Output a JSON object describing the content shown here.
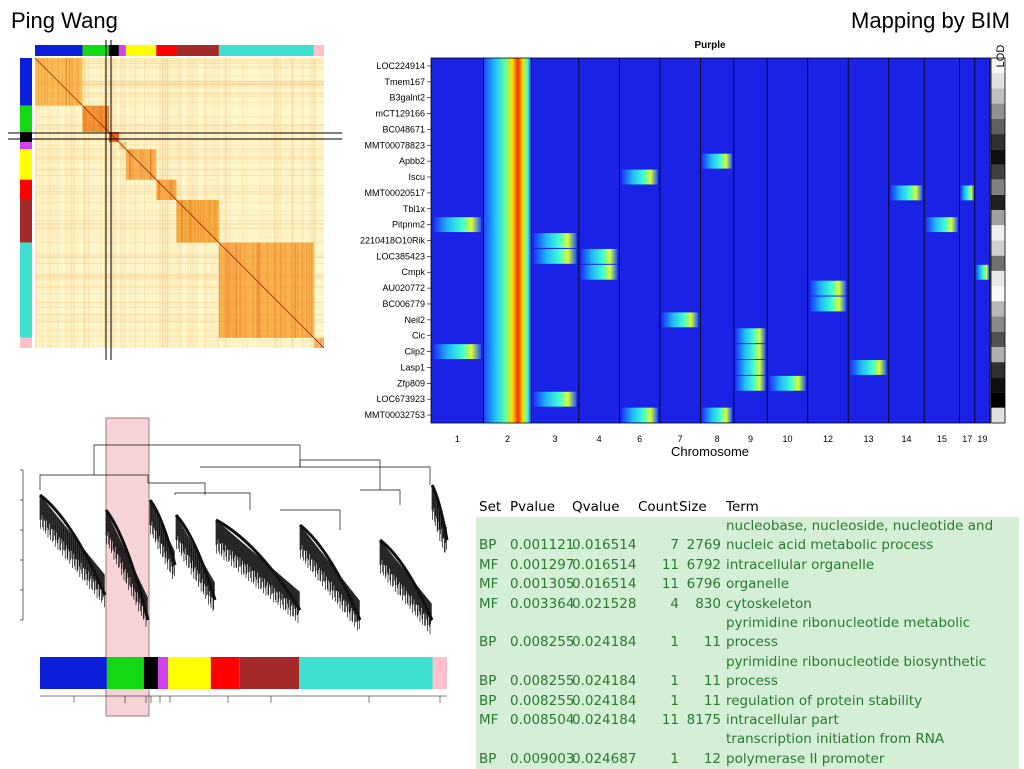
{
  "header": {
    "author": "Ping Wang",
    "method": "Mapping by BIM"
  },
  "modules": [
    {
      "color": "#0b1fdb",
      "size": 47
    },
    {
      "color": "#15d815",
      "size": 26
    },
    {
      "color": "#000000",
      "size": 10
    },
    {
      "color": "#d63ff0",
      "size": 7
    },
    {
      "color": "#ffff00",
      "size": 30
    },
    {
      "color": "#ff0000",
      "size": 20
    },
    {
      "color": "#a52a2a",
      "size": 42
    },
    {
      "color": "#40e0d0",
      "size": 94
    },
    {
      "color": "#ffc0cb",
      "size": 10
    }
  ],
  "lod_heatmap": {
    "title": "Purple",
    "xlabel": "Chromosome",
    "scale_label": "LOD",
    "chromosomes": [
      "1",
      "2",
      "3",
      "4",
      "6",
      "7",
      "8",
      "9",
      "10",
      "12",
      "13",
      "14",
      "15",
      "17",
      "19"
    ],
    "genes": [
      "LOC224914",
      "Tmem167",
      "B3galnt2",
      "mCT129166",
      "BC048671",
      "MMT00078823",
      "Apbb2",
      "Iscu",
      "MMT00020517",
      "Tbl1x",
      "Pitpnm2",
      "2210418O10Rik",
      "LOC385423",
      "Cmpk",
      "AU020772",
      "BC006779",
      "Neil2",
      "Cic",
      "Clip2",
      "Lasp1",
      "Zfp809",
      "LOC673923",
      "MMT00032753"
    ],
    "hotspots": [
      {
        "gene": 6,
        "chr": "8"
      },
      {
        "gene": 7,
        "chr": "6"
      },
      {
        "gene": 8,
        "chr": "14"
      },
      {
        "gene": 8,
        "chr": "17"
      },
      {
        "gene": 10,
        "chr": "1"
      },
      {
        "gene": 10,
        "chr": "15"
      },
      {
        "gene": 11,
        "chr": "3"
      },
      {
        "gene": 12,
        "chr": "3"
      },
      {
        "gene": 12,
        "chr": "4"
      },
      {
        "gene": 13,
        "chr": "4"
      },
      {
        "gene": 13,
        "chr": "19"
      },
      {
        "gene": 14,
        "chr": "12"
      },
      {
        "gene": 15,
        "chr": "12"
      },
      {
        "gene": 16,
        "chr": "7"
      },
      {
        "gene": 17,
        "chr": "9"
      },
      {
        "gene": 18,
        "chr": "1"
      },
      {
        "gene": 18,
        "chr": "9"
      },
      {
        "gene": 19,
        "chr": "9"
      },
      {
        "gene": 19,
        "chr": "13"
      },
      {
        "gene": 20,
        "chr": "9"
      },
      {
        "gene": 20,
        "chr": "10"
      },
      {
        "gene": 21,
        "chr": "3"
      },
      {
        "gene": 22,
        "chr": "6"
      },
      {
        "gene": 22,
        "chr": "8"
      }
    ]
  },
  "enrichment": {
    "headers": {
      "set": "Set",
      "pvalue": "Pvalue",
      "qvalue": "Qvalue",
      "count": "Count",
      "size": "Size",
      "term": "Term"
    },
    "rows": [
      {
        "set": "BP",
        "pvalue": "0.001121",
        "qvalue": "0.016514",
        "count": "7",
        "size": "2769",
        "term": "nucleobase, nucleoside, nucleotide and nucleic acid metabolic process"
      },
      {
        "set": "MF",
        "pvalue": "0.001297",
        "qvalue": "0.016514",
        "count": "11",
        "size": "6792",
        "term": "intracellular organelle"
      },
      {
        "set": "MF",
        "pvalue": "0.001305",
        "qvalue": "0.016514",
        "count": "11",
        "size": "6796",
        "term": "organelle"
      },
      {
        "set": "MF",
        "pvalue": "0.003364",
        "qvalue": "0.021528",
        "count": "4",
        "size": "830",
        "term": "cytoskeleton"
      },
      {
        "set": "BP",
        "pvalue": "0.008255",
        "qvalue": "0.024184",
        "count": "1",
        "size": "11",
        "term": "pyrimidine ribonucleotide metabolic process"
      },
      {
        "set": "BP",
        "pvalue": "0.008255",
        "qvalue": "0.024184",
        "count": "1",
        "size": "11",
        "term": "pyrimidine ribonucleotide biosynthetic process"
      },
      {
        "set": "BP",
        "pvalue": "0.008255",
        "qvalue": "0.024184",
        "count": "1",
        "size": "11",
        "term": "regulation of protein stability"
      },
      {
        "set": "MF",
        "pvalue": "0.008504",
        "qvalue": "0.024184",
        "count": "11",
        "size": "8175",
        "term": "intracellular part"
      },
      {
        "set": "BP",
        "pvalue": "0.009003",
        "qvalue": "0.024687",
        "count": "1",
        "size": "12",
        "term": "transcription initiation from RNA polymerase II promoter"
      }
    ]
  }
}
